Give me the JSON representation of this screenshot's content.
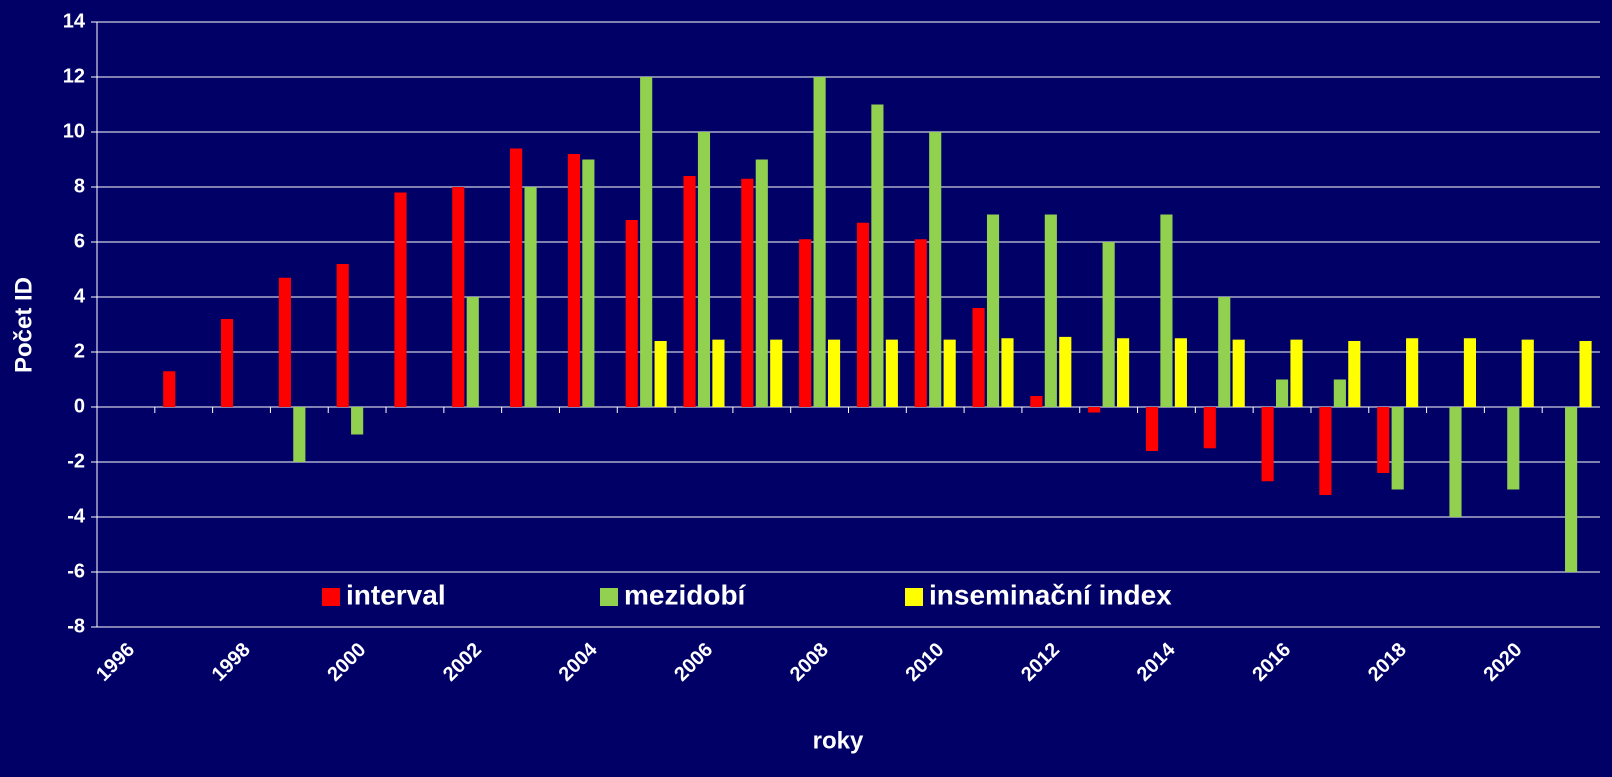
{
  "chart_data": {
    "type": "bar",
    "x_label": "roky",
    "y_label": "Počet ID",
    "categories": [
      "1996",
      null,
      "1998",
      null,
      "2000",
      null,
      "2002",
      null,
      "2004",
      null,
      "2006",
      null,
      "2008",
      null,
      "2010",
      null,
      "2012",
      null,
      "2014",
      null,
      "2016",
      null,
      "2018",
      null,
      "2020",
      null
    ],
    "series": [
      {
        "name": "interval",
        "color": "#ff0000",
        "values": [
          null,
          1.3,
          3.2,
          4.7,
          5.2,
          7.8,
          8.0,
          9.4,
          9.2,
          6.8,
          8.4,
          8.3,
          6.1,
          6.7,
          6.1,
          3.6,
          0.4,
          -0.2,
          -1.6,
          -1.5,
          -2.7,
          -3.2,
          -2.4,
          null,
          null,
          null
        ]
      },
      {
        "name": "mezidobí",
        "color": "#92d050",
        "values": [
          null,
          null,
          null,
          -2,
          -1,
          null,
          4,
          8,
          9,
          12,
          10,
          9,
          12,
          11,
          10,
          7,
          7,
          6,
          7,
          4,
          1,
          1,
          -3,
          -4,
          -3,
          -6
        ]
      },
      {
        "name": "inseminační index",
        "color": "#ffff00",
        "values": [
          null,
          null,
          null,
          null,
          null,
          null,
          null,
          null,
          null,
          2.4,
          2.45,
          2.45,
          2.45,
          2.45,
          2.45,
          2.5,
          2.55,
          2.5,
          2.5,
          2.45,
          2.45,
          2.4,
          2.5,
          2.5,
          2.45,
          2.4
        ]
      }
    ],
    "ylim": [
      -8,
      14
    ],
    "yticks": [
      -8,
      -6,
      -4,
      -2,
      0,
      2,
      4,
      6,
      8,
      10,
      12,
      14
    ],
    "grid": true,
    "legend": "lower center"
  }
}
